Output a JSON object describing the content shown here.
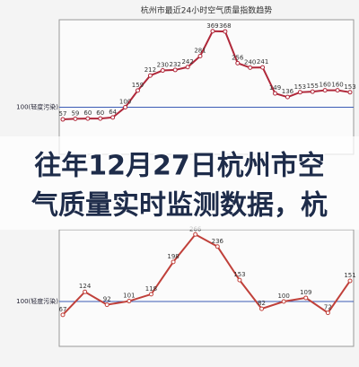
{
  "chart_data": [
    {
      "type": "line",
      "title": "杭州市最近24小时空气质量指数趋势",
      "values": [
        57,
        59,
        60,
        60,
        64,
        100,
        159,
        212,
        230,
        232,
        242,
        281,
        369,
        368,
        256,
        240,
        241,
        149,
        136,
        153,
        155,
        160,
        160,
        153
      ],
      "color": "#b0283a",
      "ylim": [
        0,
        400
      ],
      "yticks": [
        {
          "value": 100,
          "label": "100(轻度污染)"
        }
      ]
    },
    {
      "type": "line",
      "values": [
        67,
        124,
        92,
        101,
        118,
        198,
        266,
        236,
        153,
        82,
        100,
        109,
        72,
        151
      ],
      "color": "#c0403a",
      "ylim": [
        0,
        300
      ],
      "yticks": [
        {
          "value": 100,
          "label": "100(轻度污染)"
        }
      ]
    }
  ],
  "overlay": {
    "lines": [
      "往年12月27日杭州市空",
      "气质量实时监测数据，杭"
    ]
  }
}
